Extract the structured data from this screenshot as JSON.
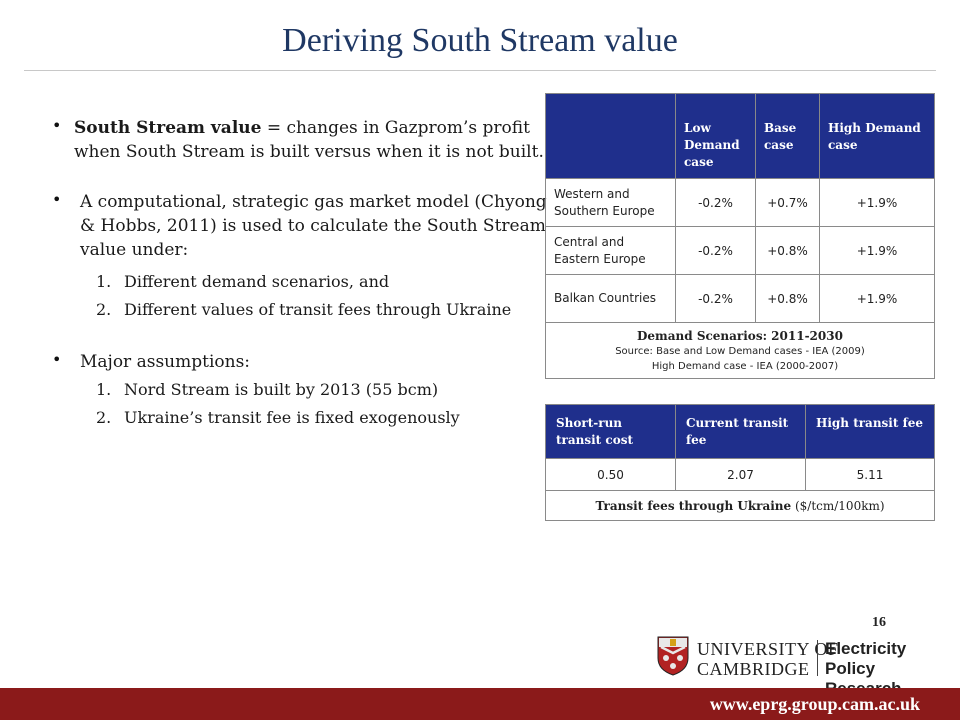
{
  "title": "Deriving South Stream value",
  "bullets": {
    "b1_bold": "South Stream value",
    "b1_rest": " = changes in Gazprom’s profit when South Stream is built versus when it is not built.",
    "b2_text": "A computational, strategic gas market model (Chyong & Hobbs, 2011) is used to calculate the South Stream value under:",
    "b2_items": [
      {
        "num": "1.",
        "text": "Different demand scenarios, and"
      },
      {
        "num": "2.",
        "text": "Different values of transit fees through Ukraine"
      }
    ],
    "b3_text": "Major assumptions:",
    "b3_items": [
      {
        "num": "1.",
        "text": "Nord Stream is built by 2013 (55 bcm)"
      },
      {
        "num": "2.",
        "text": "Ukraine’s transit fee is fixed exogenously"
      }
    ]
  },
  "demand_table": {
    "headers": [
      "",
      "Low Demand case",
      "Base case",
      "High Demand case"
    ],
    "rows": [
      {
        "label": "Western and Southern Europe",
        "values": [
          "-0.2%",
          "+0.7%",
          "+1.9%"
        ]
      },
      {
        "label": "Central and Eastern Europe",
        "values": [
          "-0.2%",
          "+0.8%",
          "+1.9%"
        ]
      },
      {
        "label": "Balkan Countries",
        "values": [
          "-0.2%",
          "+0.8%",
          "+1.9%"
        ]
      }
    ],
    "caption_title": "Demand Scenarios: 2011-2030",
    "caption_source1": "Source: Base and Low Demand cases - IEA (2009)",
    "caption_source2": "High Demand case  - IEA (2000-2007)"
  },
  "transit_table": {
    "headers": [
      "Short-run transit cost",
      "Current transit fee",
      "High transit fee"
    ],
    "values": [
      "0.50",
      "2.07",
      "5.11"
    ],
    "caption_bold": "Transit fees through Ukraine",
    "caption_rest": " ($/tcm/100km)"
  },
  "page_number": "16",
  "logo": {
    "university_line1": "UNIVERSITY OF",
    "university_line2": "CAMBRIDGE",
    "group_line1": "Electricity Policy",
    "group_line2": "Research Group"
  },
  "footer_url": "www.eprg.group.cam.ac.uk",
  "colors": {
    "title": "#1f3864",
    "table_header": "#1f2f8c",
    "footer": "#8b1a1a"
  }
}
